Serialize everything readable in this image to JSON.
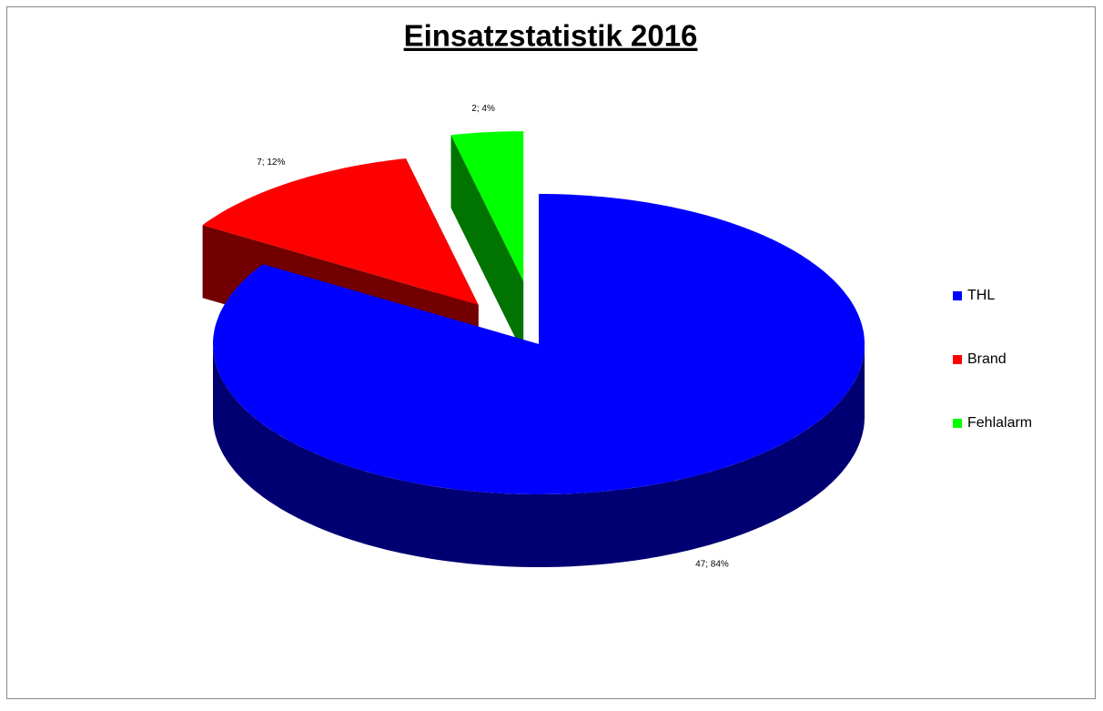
{
  "chart_data": {
    "type": "pie3d",
    "title": "Einsatzstatistik 2016",
    "categories": [
      "THL",
      "Brand",
      "Fehlalarm"
    ],
    "values": [
      47,
      7,
      2
    ],
    "value_labels": [
      "47; 84%",
      "7; 12%",
      "2; 4%"
    ],
    "colors": [
      "#0000ff",
      "#ff0000",
      "#00ff00"
    ],
    "legend": "right"
  }
}
